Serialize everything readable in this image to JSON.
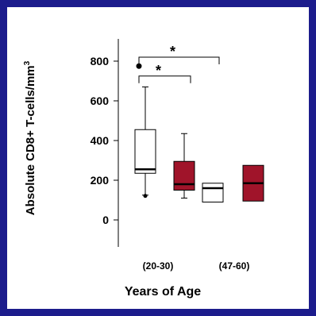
{
  "chart_data": {
    "type": "box",
    "ylabel": "Absolute CD8+ T-cells/mm",
    "ylabel_superscript": "3",
    "xlabel": "Years of Age",
    "yticks": [
      0,
      200,
      400,
      600,
      800
    ],
    "ylim": [
      -180,
      930
    ],
    "groups": [
      {
        "label": "(20-30)"
      },
      {
        "label": "(47-60)"
      }
    ],
    "colors": {
      "open": "#ffffff",
      "filled": "#a0142a",
      "stroke": "#000000"
    },
    "boxes": [
      {
        "group": 0,
        "fill": "open",
        "whisker_low": 125,
        "q1": 235,
        "median": 255,
        "q3": 455,
        "whisker_high": 670,
        "outliers": [
          775
        ]
      },
      {
        "group": 0,
        "fill": "filled",
        "whisker_low": 110,
        "q1": 150,
        "median": 180,
        "q3": 295,
        "whisker_high": 435,
        "outliers": []
      },
      {
        "group": 1,
        "fill": "open",
        "whisker_low": 90,
        "q1": 90,
        "median": 160,
        "q3": 185,
        "whisker_high": 185,
        "outliers": []
      },
      {
        "group": 1,
        "fill": "filled",
        "whisker_low": 95,
        "q1": 95,
        "median": 185,
        "q3": 275,
        "whisker_high": 275,
        "outliers": []
      }
    ],
    "significance": [
      {
        "from_box": 0,
        "to_box": 2,
        "y": 820,
        "label": "*"
      },
      {
        "from_box": 0,
        "to_box": 1,
        "y": 725,
        "label": "*"
      }
    ]
  }
}
